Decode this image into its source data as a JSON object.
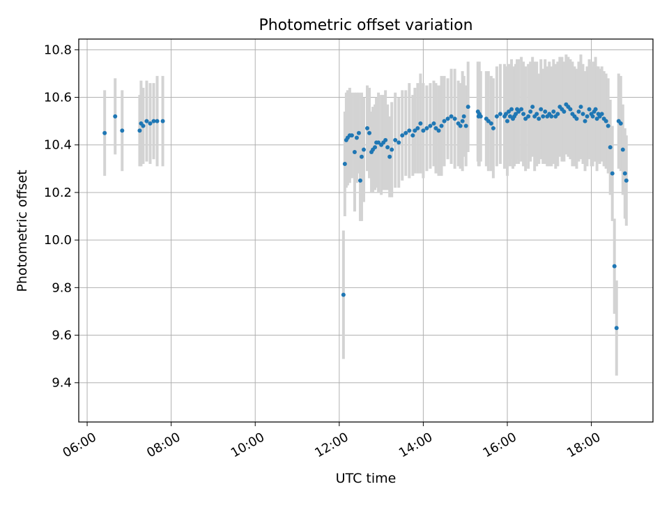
{
  "chart_data": {
    "type": "scatter",
    "title": "Photometric offset variation",
    "xlabel": "UTC time",
    "ylabel": "Photometric offset",
    "xlim": [
      "05:48",
      "19:28"
    ],
    "ylim": [
      9.235,
      10.845
    ],
    "x_ticks": [
      "06:00",
      "08:00",
      "10:00",
      "12:00",
      "14:00",
      "16:00",
      "18:00"
    ],
    "y_ticks": [
      "9.4",
      "9.6",
      "9.8",
      "10.0",
      "10.2",
      "10.4",
      "10.6",
      "10.8"
    ],
    "grid": true,
    "marker_color": "#1f77b4",
    "errorbar_color": "#d3d3d3",
    "series": [
      {
        "x": [
          "06:25",
          "06:40",
          "06:50",
          "07:15",
          "07:17",
          "07:20",
          "07:25",
          "07:30",
          "07:35",
          "07:40",
          "07:48",
          "12:06",
          "12:08",
          "12:10",
          "12:12",
          "12:15",
          "12:18",
          "12:22",
          "12:25",
          "12:28",
          "12:30",
          "12:32",
          "12:35",
          "12:40",
          "12:43",
          "12:46",
          "12:48",
          "12:51",
          "12:53",
          "12:56",
          "13:00",
          "13:03",
          "13:06",
          "13:09",
          "13:12",
          "13:15",
          "13:20",
          "13:25",
          "13:30",
          "13:35",
          "13:40",
          "13:45",
          "13:48",
          "13:52",
          "13:56",
          "14:00",
          "14:05",
          "14:10",
          "14:15",
          "14:18",
          "14:22",
          "14:26",
          "14:30",
          "14:35",
          "14:40",
          "14:45",
          "14:50",
          "14:53",
          "14:56",
          "14:58",
          "15:01",
          "15:04",
          "15:18",
          "15:19",
          "15:20",
          "15:22",
          "15:30",
          "15:33",
          "15:37",
          "15:40",
          "15:45",
          "15:50",
          "15:56",
          "15:58",
          "16:00",
          "16:02",
          "16:04",
          "16:06",
          "16:08",
          "16:10",
          "16:12",
          "16:14",
          "16:16",
          "16:20",
          "16:23",
          "16:26",
          "16:30",
          "16:33",
          "16:36",
          "16:39",
          "16:42",
          "16:45",
          "16:48",
          "16:51",
          "16:54",
          "16:57",
          "17:00",
          "17:03",
          "17:06",
          "17:09",
          "17:12",
          "17:15",
          "17:18",
          "17:21",
          "17:24",
          "17:27",
          "17:30",
          "17:33",
          "17:36",
          "17:39",
          "17:42",
          "17:45",
          "17:48",
          "17:51",
          "17:54",
          "17:57",
          "18:00",
          "18:02",
          "18:04",
          "18:06",
          "18:08",
          "18:10",
          "18:12",
          "18:15",
          "18:18",
          "18:21",
          "18:24",
          "18:27",
          "18:30",
          "18:33",
          "18:36",
          "18:39",
          "18:42",
          "18:45",
          "18:48",
          "18:50"
        ],
        "y": [
          10.45,
          10.52,
          10.46,
          10.46,
          10.49,
          10.48,
          10.5,
          10.49,
          10.5,
          10.5,
          10.5,
          9.77,
          10.32,
          10.42,
          10.43,
          10.44,
          10.44,
          10.37,
          10.43,
          10.45,
          10.25,
          10.35,
          10.38,
          10.47,
          10.45,
          10.37,
          10.38,
          10.39,
          10.41,
          10.41,
          10.4,
          10.41,
          10.42,
          10.39,
          10.35,
          10.38,
          10.42,
          10.41,
          10.44,
          10.45,
          10.46,
          10.44,
          10.46,
          10.47,
          10.49,
          10.46,
          10.47,
          10.48,
          10.49,
          10.47,
          10.46,
          10.48,
          10.5,
          10.51,
          10.52,
          10.51,
          10.49,
          10.48,
          10.5,
          10.52,
          10.48,
          10.56,
          10.54,
          10.52,
          10.53,
          10.52,
          10.51,
          10.5,
          10.49,
          10.47,
          10.52,
          10.53,
          10.52,
          10.53,
          10.5,
          10.54,
          10.52,
          10.55,
          10.51,
          10.52,
          10.53,
          10.55,
          10.54,
          10.55,
          10.53,
          10.51,
          10.52,
          10.54,
          10.56,
          10.52,
          10.53,
          10.51,
          10.55,
          10.52,
          10.54,
          10.52,
          10.53,
          10.52,
          10.54,
          10.52,
          10.53,
          10.56,
          10.55,
          10.54,
          10.57,
          10.56,
          10.55,
          10.53,
          10.52,
          10.51,
          10.54,
          10.56,
          10.53,
          10.5,
          10.52,
          10.55,
          10.53,
          10.52,
          10.54,
          10.55,
          10.51,
          10.53,
          10.52,
          10.53,
          10.51,
          10.5,
          10.48,
          10.39,
          10.28,
          9.89,
          9.63,
          10.5,
          10.49,
          10.38,
          10.28,
          10.25
        ],
        "yerr": [
          0.18,
          0.16,
          0.17,
          0.15,
          0.18,
          0.16,
          0.17,
          0.17,
          0.16,
          0.19,
          0.19,
          0.27,
          0.22,
          0.2,
          0.2,
          0.2,
          0.18,
          0.25,
          0.19,
          0.17,
          0.17,
          0.27,
          0.22,
          0.18,
          0.19,
          0.17,
          0.18,
          0.18,
          0.19,
          0.21,
          0.21,
          0.2,
          0.21,
          0.18,
          0.17,
          0.2,
          0.2,
          0.19,
          0.19,
          0.18,
          0.2,
          0.17,
          0.18,
          0.19,
          0.21,
          0.2,
          0.18,
          0.18,
          0.18,
          0.19,
          0.19,
          0.21,
          0.19,
          0.17,
          0.2,
          0.21,
          0.18,
          0.18,
          0.21,
          0.17,
          0.17,
          0.19,
          0.21,
          0.21,
          0.22,
          0.19,
          0.2,
          0.21,
          0.2,
          0.21,
          0.21,
          0.21,
          0.22,
          0.2,
          0.23,
          0.2,
          0.21,
          0.21,
          0.21,
          0.21,
          0.21,
          0.21,
          0.22,
          0.22,
          0.22,
          0.22,
          0.22,
          0.21,
          0.21,
          0.23,
          0.22,
          0.19,
          0.21,
          0.2,
          0.22,
          0.21,
          0.22,
          0.21,
          0.22,
          0.22,
          0.22,
          0.21,
          0.22,
          0.21,
          0.21,
          0.21,
          0.21,
          0.22,
          0.21,
          0.21,
          0.21,
          0.22,
          0.21,
          0.21,
          0.21,
          0.21,
          0.22,
          0.21,
          0.21,
          0.22,
          0.22,
          0.2,
          0.2,
          0.2,
          0.2,
          0.2,
          0.2,
          0.2,
          0.2,
          0.2,
          0.2,
          0.2,
          0.2,
          0.19,
          0.19,
          0.19
        ]
      }
    ]
  }
}
